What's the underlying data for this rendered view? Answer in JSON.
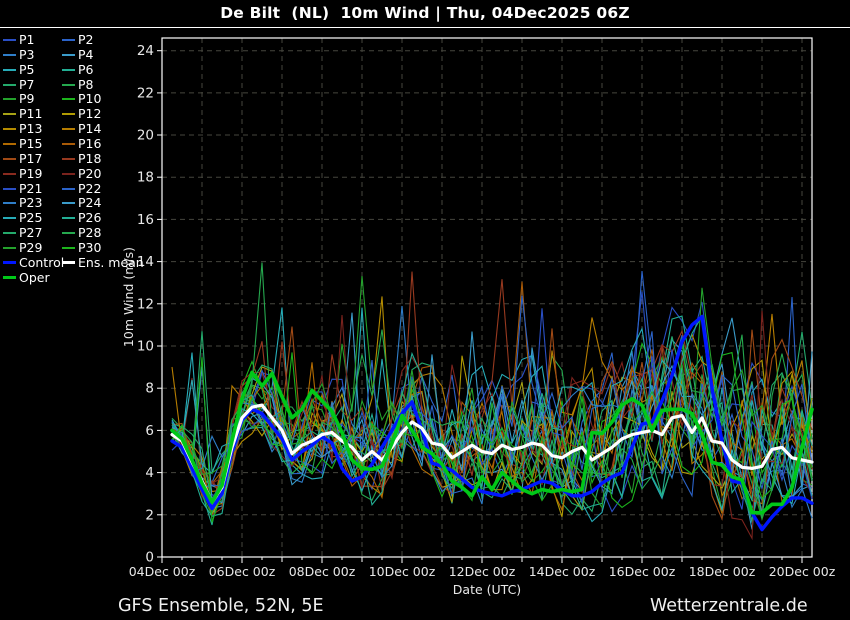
{
  "title": "De Bilt  (NL)  10m Wind | Thu, 04Dec2025 06Z",
  "footer": {
    "left": "GFS Ensemble, 52N, 5E",
    "right": "Wetterzentrale.de"
  },
  "axes": {
    "y_label": "10m Wind (m/s)",
    "x_label": "Date (UTC)",
    "y_ticks": [
      0,
      2,
      4,
      6,
      8,
      10,
      12,
      14,
      16,
      18,
      20,
      22,
      24
    ],
    "x_tick_labels": [
      "04Dec 00z",
      "06Dec 00z",
      "08Dec 00z",
      "10Dec 00z",
      "12Dec 00z",
      "14Dec 00z",
      "16Dec 00z",
      "18Dec 00z",
      "20Dec 00z"
    ]
  },
  "legend": {
    "entries": [
      {
        "label": "P1",
        "color": "#2a4fc5"
      },
      {
        "label": "P2",
        "color": "#2b63c9"
      },
      {
        "label": "P3",
        "color": "#2f7ec9"
      },
      {
        "label": "P4",
        "color": "#3a9bc9"
      },
      {
        "label": "P5",
        "color": "#27acb8"
      },
      {
        "label": "P6",
        "color": "#22ae94"
      },
      {
        "label": "P7",
        "color": "#24aa6c"
      },
      {
        "label": "P8",
        "color": "#25a84e"
      },
      {
        "label": "P9",
        "color": "#24a22c"
      },
      {
        "label": "P10",
        "color": "#1cb41c"
      },
      {
        "label": "P11",
        "color": "#a7a315"
      },
      {
        "label": "P12",
        "color": "#b19b02"
      },
      {
        "label": "P13",
        "color": "#b58c00"
      },
      {
        "label": "P14",
        "color": "#b67d00"
      },
      {
        "label": "P15",
        "color": "#b16a00"
      },
      {
        "label": "P16",
        "color": "#a95a07"
      },
      {
        "label": "P17",
        "color": "#a14a15"
      },
      {
        "label": "P18",
        "color": "#97391f"
      },
      {
        "label": "P19",
        "color": "#8a2b1f"
      },
      {
        "label": "P20",
        "color": "#7a231d"
      },
      {
        "label": "P21",
        "color": "#2a4fc5"
      },
      {
        "label": "P22",
        "color": "#2b63c9"
      },
      {
        "label": "P23",
        "color": "#2f7ec9"
      },
      {
        "label": "P24",
        "color": "#3a9bc9"
      },
      {
        "label": "P25",
        "color": "#27acb8"
      },
      {
        "label": "P26",
        "color": "#22ae94"
      },
      {
        "label": "P27",
        "color": "#24aa6c"
      },
      {
        "label": "P28",
        "color": "#25a84e"
      },
      {
        "label": "P29",
        "color": "#24a22c"
      },
      {
        "label": "P30",
        "color": "#1cb41c"
      },
      {
        "label": "Control",
        "color": "#0016ff"
      },
      {
        "label": "Ens. mean",
        "color": "#ffffff"
      },
      {
        "label": "Oper",
        "color": "#00c818"
      }
    ]
  },
  "chart_data": {
    "type": "line",
    "title": "De Bilt (NL) 10m Wind, GFS Ensemble, init Thu 04Dec2025 06Z",
    "xlabel": "Date (UTC)",
    "ylabel": "10m Wind (m/s)",
    "ylim": [
      0,
      24.6
    ],
    "x_axis_start": "04Dec 00z",
    "x_data_start": "04Dec 06z",
    "x_data_end": "20Dec 06z",
    "x_step_hours": 6,
    "n_points": 65,
    "grid": true,
    "legend_position": "top-left",
    "series": [
      {
        "name": "Ens. mean",
        "color": "#ffffff",
        "width": 3.2,
        "values": [
          5.8,
          5.5,
          4.5,
          3.6,
          2.6,
          3.3,
          5.2,
          6.6,
          7.1,
          7.2,
          6.6,
          6.0,
          4.9,
          5.3,
          5.5,
          5.8,
          5.9,
          5.5,
          5.2,
          4.6,
          5.0,
          4.6,
          5.2,
          5.9,
          6.4,
          6.1,
          5.4,
          5.3,
          4.7,
          5.0,
          5.3,
          5.0,
          4.9,
          5.3,
          5.1,
          5.2,
          5.4,
          5.3,
          4.8,
          4.7,
          5.0,
          5.2,
          4.6,
          4.9,
          5.2,
          5.6,
          5.8,
          5.9,
          6.0,
          5.8,
          6.6,
          6.7,
          5.9,
          6.6,
          5.5,
          5.4,
          4.6,
          4.25,
          4.2,
          4.3,
          5.1,
          5.2,
          4.7,
          4.6,
          4.5
        ]
      },
      {
        "name": "Control",
        "color": "#0016ff",
        "width": 3.4,
        "values": [
          5.5,
          5.2,
          4.2,
          3.2,
          2.3,
          3.0,
          5.0,
          6.5,
          7.0,
          6.8,
          6.2,
          5.6,
          4.6,
          5.0,
          5.3,
          5.7,
          5.4,
          4.2,
          3.6,
          3.8,
          4.4,
          5.2,
          6.0,
          6.8,
          7.35,
          6.0,
          4.45,
          4.3,
          4.1,
          3.7,
          3.3,
          3.1,
          3.0,
          2.9,
          3.1,
          3.2,
          3.4,
          3.6,
          3.5,
          3.2,
          2.9,
          2.9,
          3.1,
          3.5,
          3.8,
          4.0,
          5.2,
          6.3,
          6.4,
          7.4,
          8.6,
          10.2,
          11.0,
          11.4,
          8.0,
          5.5,
          3.6,
          3.5,
          2.1,
          1.3,
          1.9,
          2.4,
          2.8,
          2.8,
          2.55
        ]
      },
      {
        "name": "Oper",
        "color": "#00c818",
        "width": 3.6,
        "values": [
          6.0,
          5.6,
          4.6,
          3.5,
          2.6,
          3.4,
          5.5,
          7.5,
          8.75,
          8.1,
          8.7,
          7.6,
          6.6,
          7.0,
          7.9,
          7.4,
          6.9,
          5.9,
          4.6,
          4.2,
          4.15,
          4.3,
          5.4,
          6.7,
          6.0,
          5.2,
          4.9,
          4.4,
          3.6,
          3.3,
          2.9,
          3.8,
          3.2,
          4.0,
          3.6,
          3.2,
          3.0,
          3.2,
          3.1,
          3.2,
          3.1,
          3.2,
          5.9,
          5.85,
          6.4,
          7.2,
          7.5,
          7.2,
          6.0,
          6.95,
          7.0,
          7.0,
          6.8,
          5.8,
          4.5,
          4.35,
          3.8,
          3.65,
          2.1,
          2.1,
          2.5,
          2.5,
          3.3,
          5.2,
          7.0
        ]
      }
    ],
    "members": {
      "count": 30,
      "note": "30 perturbation members P1-P30 drawn as thin noisy lines around the ensemble mean; individual values not readable in source image, synthesized deterministically from these parameters",
      "labels": [
        "P1",
        "P2",
        "P3",
        "P4",
        "P5",
        "P6",
        "P7",
        "P8",
        "P9",
        "P10",
        "P11",
        "P12",
        "P13",
        "P14",
        "P15",
        "P16",
        "P17",
        "P18",
        "P19",
        "P20",
        "P21",
        "P22",
        "P23",
        "P24",
        "P25",
        "P26",
        "P27",
        "P28",
        "P29",
        "P30"
      ],
      "colors": [
        "#2a4fc5",
        "#2b63c9",
        "#2f7ec9",
        "#3a9bc9",
        "#27acb8",
        "#22ae94",
        "#24aa6c",
        "#25a84e",
        "#24a22c",
        "#1cb41c",
        "#a7a315",
        "#b19b02",
        "#b58c00",
        "#b67d00",
        "#b16a00",
        "#a95a07",
        "#a14a15",
        "#97391f",
        "#8a2b1f",
        "#7a231d",
        "#2a4fc5",
        "#2b63c9",
        "#2f7ec9",
        "#3a9bc9",
        "#27acb8",
        "#22ae94",
        "#24aa6c",
        "#25a84e",
        "#24a22c",
        "#1cb41c"
      ],
      "seed": 7,
      "spread_base": 0.8,
      "spread_growth": 4.3,
      "spread_exponent": 0.6,
      "persistence": 0.45,
      "upward_skew": 1.4,
      "spike_chance": 0.045,
      "spike_max": 5.0,
      "clamp": [
        0.25,
        16.3
      ]
    }
  },
  "layout_colors": {
    "background": "#000000",
    "grid": "#46463e",
    "frame": "#ffffff",
    "tick_text": "#e8e8e8"
  }
}
